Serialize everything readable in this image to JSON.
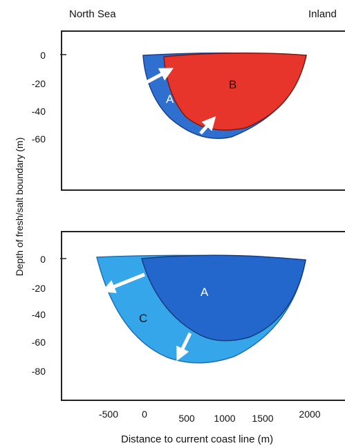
{
  "header": {
    "left_label": "North Sea",
    "right_label": "Inland"
  },
  "y_axis": {
    "label": "Depth of fresh/salt boundary (m)"
  },
  "x_axis": {
    "label": "Distance to current coast line (m)",
    "ticks": [
      "-500",
      "0",
      "500",
      "1000",
      "1500",
      "2000"
    ]
  },
  "top_panel": {
    "y_ticks": [
      "0",
      "-20",
      "-40",
      "-60"
    ],
    "region_outer": {
      "label": "A",
      "color": "#2e6fd0"
    },
    "region_inner": {
      "label": "B",
      "color": "#e8352b"
    }
  },
  "bottom_panel": {
    "y_ticks": [
      "0",
      "-20",
      "-40",
      "-60",
      "-80"
    ],
    "region_outer": {
      "label": "C",
      "color": "#35a6ea"
    },
    "region_inner": {
      "label": "A",
      "color": "#2467cc"
    }
  }
}
